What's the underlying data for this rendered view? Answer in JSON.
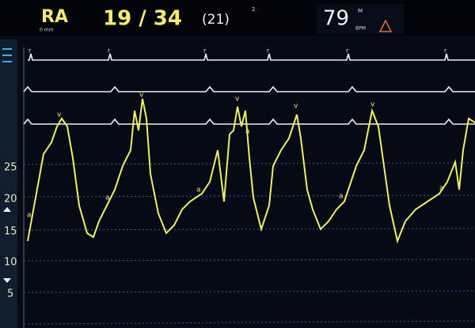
{
  "header": {
    "label": "RA",
    "sub": "0 mm",
    "pressure": "19 / 34",
    "mean": "(21)",
    "mark": "2",
    "heart_rate": "79",
    "hr_flag": "M",
    "hr_unit": "BPM"
  },
  "scale": [
    25,
    20,
    15,
    10,
    5
  ],
  "wave_labels": [
    "a",
    "v",
    "a",
    "v",
    "a",
    "v",
    "a",
    "v",
    "a",
    "v",
    "a"
  ],
  "ecg_labels": [
    "r",
    "r",
    "r",
    "r",
    "r",
    "r"
  ]
}
